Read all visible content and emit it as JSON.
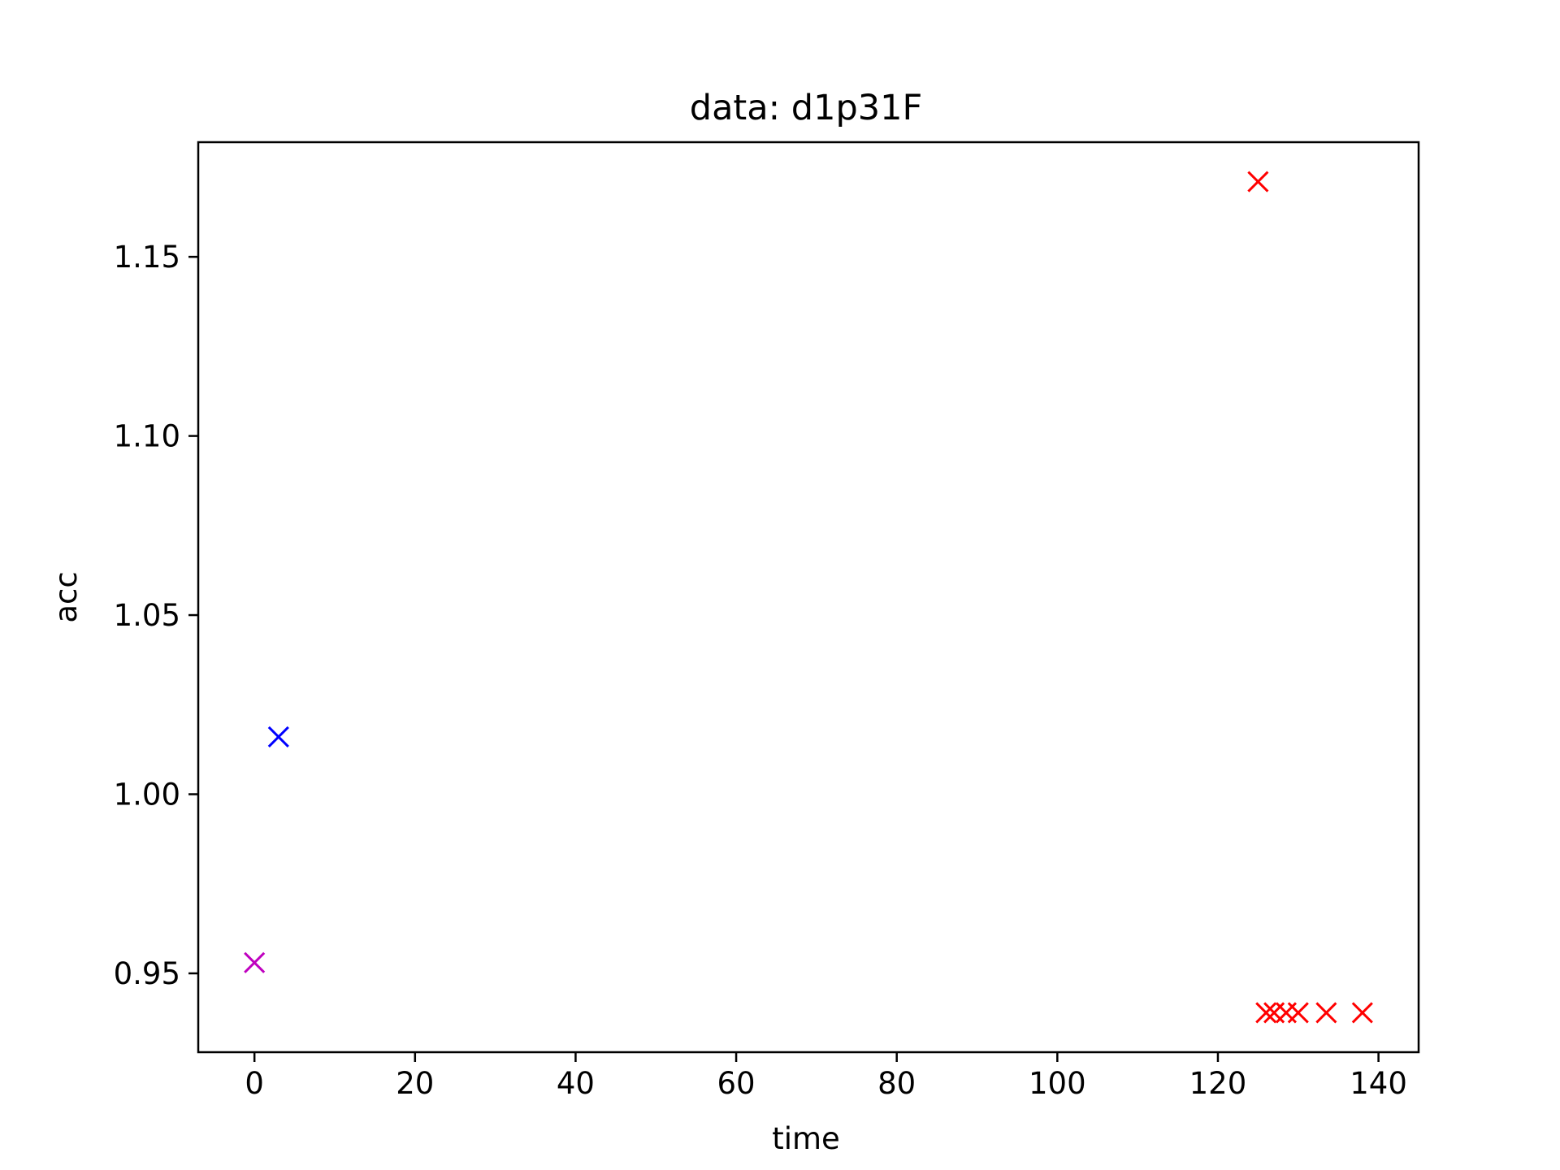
{
  "chart_data": {
    "type": "scatter",
    "title": "data: d1p31F",
    "xlabel": "time",
    "ylabel": "acc",
    "xlim": [
      -7,
      145
    ],
    "ylim": [
      0.928,
      1.182
    ],
    "xticks": [
      0,
      20,
      40,
      60,
      80,
      100,
      120,
      140
    ],
    "xtick_labels": [
      "0",
      "20",
      "40",
      "60",
      "80",
      "100",
      "120",
      "140"
    ],
    "yticks": [
      0.95,
      1.0,
      1.05,
      1.1,
      1.15
    ],
    "ytick_labels": [
      "0.95",
      "1.00",
      "1.05",
      "1.10",
      "1.15"
    ],
    "grid": false,
    "marker": "x",
    "series": [
      {
        "color": "#bf00bf",
        "points": [
          {
            "x": 0,
            "y": 0.953
          }
        ]
      },
      {
        "color": "#0000ff",
        "points": [
          {
            "x": 3,
            "y": 1.016
          }
        ]
      },
      {
        "color": "#ff0000",
        "points": [
          {
            "x": 125,
            "y": 1.171
          },
          {
            "x": 126,
            "y": 0.939
          },
          {
            "x": 127,
            "y": 0.939
          },
          {
            "x": 128.5,
            "y": 0.939
          },
          {
            "x": 130,
            "y": 0.939
          },
          {
            "x": 133.5,
            "y": 0.939
          },
          {
            "x": 138,
            "y": 0.939
          }
        ]
      }
    ]
  }
}
